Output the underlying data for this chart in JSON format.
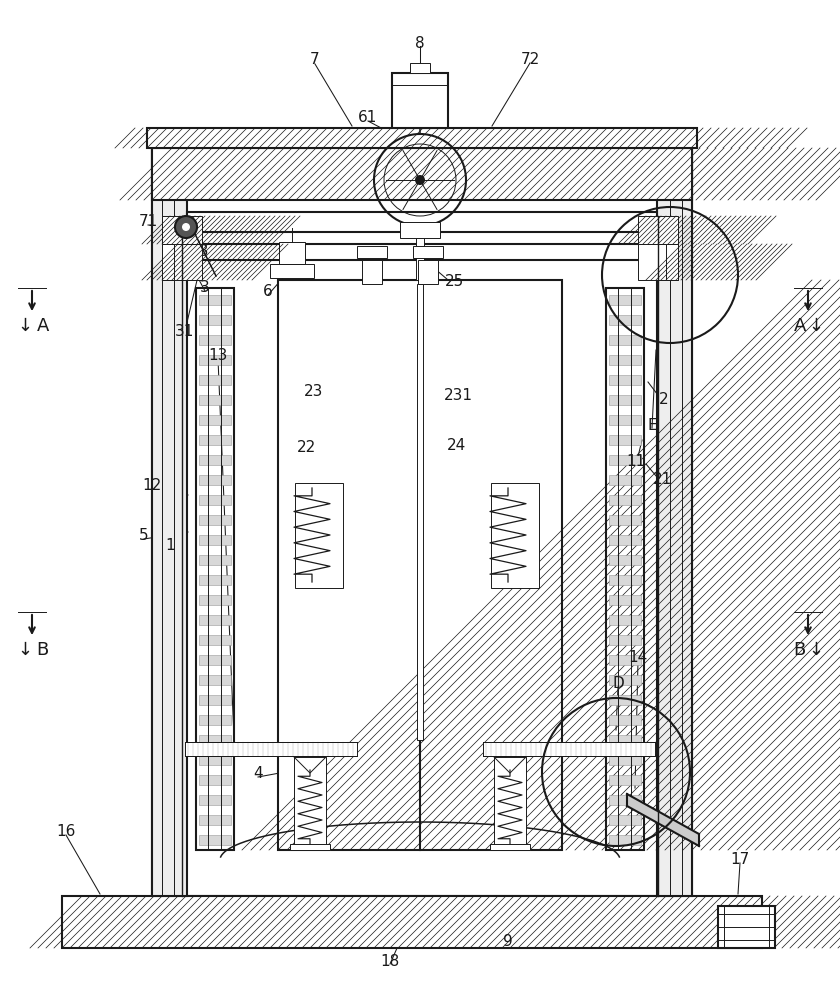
{
  "bg_color": "#ffffff",
  "lc": "#1a1a1a",
  "lw1": 1.5,
  "lw0": 0.7,
  "lw2": 1.1,
  "fig_w": 8.4,
  "fig_h": 10.0
}
